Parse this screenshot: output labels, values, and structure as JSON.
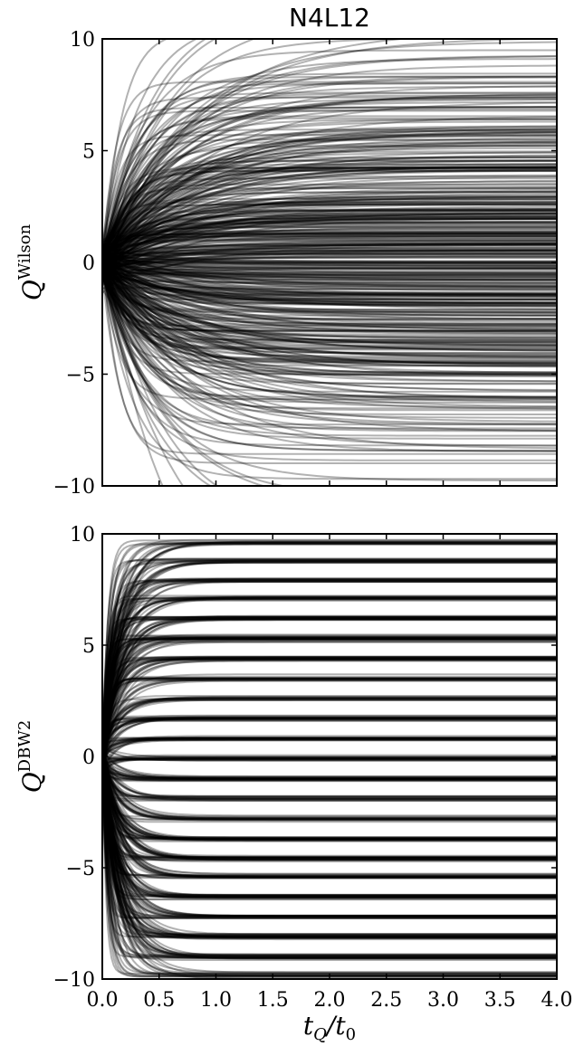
{
  "figure_title": "N4L12",
  "chart_data": [
    {
      "type": "line",
      "panel": "top",
      "ylabel": "Q^Wilson",
      "ylabel_base": "Q",
      "ylabel_sup": "Wilson",
      "xlabel": "",
      "xlim": [
        0.0,
        4.0
      ],
      "ylim": [
        -10,
        10
      ],
      "xticks": [
        0.0,
        0.5,
        1.0,
        1.5,
        2.0,
        2.5,
        3.0,
        3.5,
        4.0
      ],
      "xtick_labels": [],
      "yticks": [
        -10,
        -5,
        0,
        5,
        10
      ],
      "ytick_labels": [
        "−10",
        "−5",
        "0",
        "5",
        "10"
      ],
      "grid": false,
      "line_color": "#000000",
      "line_opacity": 0.3,
      "series_count": 500,
      "behavior": "flow curves start near 0 at t_Q/t_0 = 0 and spread smoothly out to a continuous range of values between about -10 and 10 without settling on integers",
      "series_sample": [
        {
          "x": [
            0.0,
            0.25,
            0.5,
            1.0,
            2.0,
            3.0,
            4.0
          ],
          "values": [
            0.0,
            4.1,
            6.3,
            7.6,
            8.2,
            8.4,
            8.5
          ]
        },
        {
          "x": [
            0.0,
            0.25,
            0.5,
            1.0,
            2.0,
            3.0,
            4.0
          ],
          "values": [
            0.0,
            2.4,
            3.6,
            4.3,
            4.7,
            4.8,
            4.9
          ]
        },
        {
          "x": [
            0.0,
            0.25,
            0.5,
            1.0,
            2.0,
            3.0,
            4.0
          ],
          "values": [
            0.0,
            0.8,
            1.3,
            1.6,
            1.8,
            1.8,
            1.8
          ]
        },
        {
          "x": [
            0.0,
            0.25,
            0.5,
            1.0,
            2.0,
            3.0,
            4.0
          ],
          "values": [
            0.0,
            -1.6,
            -2.6,
            -3.1,
            -3.4,
            -3.5,
            -3.5
          ]
        },
        {
          "x": [
            0.0,
            0.25,
            0.5,
            1.0,
            2.0,
            3.0,
            4.0
          ],
          "values": [
            0.0,
            -4.3,
            -6.4,
            -7.7,
            -8.3,
            -8.5,
            -8.6
          ]
        }
      ]
    },
    {
      "type": "line",
      "panel": "bottom",
      "ylabel": "Q^DBW2",
      "ylabel_base": "Q",
      "ylabel_sup": "DBW2",
      "xlabel": "t_Q/t_0",
      "xlabel_base": "t",
      "xlabel_sub": "Q",
      "xlabel_mid": "/t",
      "xlabel_sub2": "0",
      "xlim": [
        0.0,
        4.0
      ],
      "ylim": [
        -10,
        10
      ],
      "xticks": [
        0.0,
        0.5,
        1.0,
        1.5,
        2.0,
        2.5,
        3.0,
        3.5,
        4.0
      ],
      "xtick_labels": [
        "0.0",
        "0.5",
        "1.0",
        "1.5",
        "2.0",
        "2.5",
        "3.0",
        "3.5",
        "4.0"
      ],
      "yticks": [
        -10,
        -5,
        0,
        5,
        10
      ],
      "ytick_labels": [
        "−10",
        "−5",
        "0",
        "5",
        "10"
      ],
      "grid": false,
      "line_color": "#000000",
      "line_opacity": 0.3,
      "series_count": 500,
      "behavior": "flow curves start near 0 at t_Q/t_0 = 0 and converge onto plateaus close to integer values from about -10 to 10, slightly below each integer",
      "plateau_levels": [
        9.6,
        8.8,
        7.9,
        7.1,
        6.2,
        5.3,
        4.4,
        3.5,
        2.6,
        1.7,
        0.8,
        -0.1,
        -1.0,
        -1.9,
        -2.8,
        -3.7,
        -4.6,
        -5.4,
        -6.3,
        -7.2,
        -8.1,
        -9.0,
        -9.8
      ],
      "series_sample": [
        {
          "x": [
            0.0,
            0.25,
            0.5,
            1.0,
            2.0,
            3.0,
            4.0
          ],
          "values": [
            0.0,
            7.2,
            7.8,
            7.9,
            7.9,
            7.9,
            7.9
          ]
        },
        {
          "x": [
            0.0,
            0.25,
            0.5,
            1.0,
            2.0,
            3.0,
            4.0
          ],
          "values": [
            0.0,
            3.2,
            3.5,
            3.5,
            3.5,
            3.5,
            3.5
          ]
        },
        {
          "x": [
            0.0,
            0.25,
            0.5,
            1.0,
            2.0,
            3.0,
            4.0
          ],
          "values": [
            0.0,
            -0.1,
            -0.1,
            -0.1,
            -0.1,
            -0.1,
            -0.1
          ]
        },
        {
          "x": [
            0.0,
            0.25,
            0.5,
            1.0,
            2.0,
            3.0,
            4.0
          ],
          "values": [
            0.0,
            -4.2,
            -4.6,
            -4.6,
            -4.6,
            -4.6,
            -4.6
          ]
        },
        {
          "x": [
            0.0,
            0.25,
            0.5,
            1.0,
            2.0,
            3.0,
            4.0
          ],
          "values": [
            0.0,
            -7.4,
            -8.1,
            -8.1,
            -8.1,
            -8.1,
            -8.1
          ]
        }
      ]
    }
  ]
}
